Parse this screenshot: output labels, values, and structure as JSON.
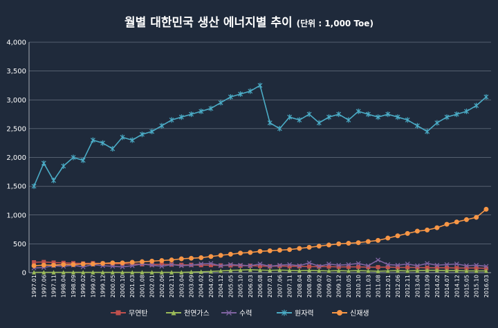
{
  "chart_data": {
    "type": "line",
    "title": "월별 대한민국 생산 에너지별 추이",
    "subtitle": "(단위 : 1,000 Toe)",
    "xlabel": "",
    "ylabel": "",
    "ylim": [
      0,
      4000
    ],
    "yticks": [
      "0",
      "500",
      "1,000",
      "1,500",
      "2,000",
      "2,500",
      "3,000",
      "3,500",
      "4,000"
    ],
    "x": [
      "1997.01",
      "1997.06",
      "1997.11",
      "1998.04",
      "1998.09",
      "1999.02",
      "1999.07",
      "1999.12",
      "2000.05",
      "2000.10",
      "2001.03",
      "2001.08",
      "2002.01",
      "2002.06",
      "2002.11",
      "2003.04",
      "2003.09",
      "2004.02",
      "2004.07",
      "2004.12",
      "2005.05",
      "2005.10",
      "2006.03",
      "2006.08",
      "2007.01",
      "2007.06",
      "2007.11",
      "2008.04",
      "2008.09",
      "2009.02",
      "2009.07",
      "2009.12",
      "2010.05",
      "2010.10",
      "2011.03",
      "2011.08",
      "2012.01",
      "2012.06",
      "2012.11",
      "2013.04",
      "2013.09",
      "2014.02",
      "2014.07",
      "2014.12",
      "2015.05",
      "2015.10",
      "2016.03"
    ],
    "grid": true,
    "legend_position": "bottom",
    "series": [
      {
        "name": "무연탄",
        "color": "#c0504d",
        "marker": "square",
        "values": [
          180,
          185,
          175,
          170,
          165,
          160,
          165,
          160,
          150,
          155,
          150,
          145,
          140,
          145,
          140,
          135,
          135,
          130,
          130,
          125,
          125,
          120,
          120,
          115,
          110,
          115,
          110,
          110,
          105,
          105,
          105,
          100,
          100,
          100,
          95,
          95,
          95,
          90,
          90,
          90,
          85,
          85,
          85,
          80,
          80,
          80,
          75
        ]
      },
      {
        "name": "천연가스",
        "color": "#9bbb59",
        "marker": "triangle",
        "values": [
          5,
          5,
          5,
          5,
          5,
          5,
          5,
          5,
          5,
          5,
          5,
          5,
          5,
          5,
          5,
          5,
          10,
          15,
          20,
          30,
          40,
          45,
          50,
          45,
          40,
          45,
          40,
          35,
          40,
          35,
          30,
          35,
          30,
          35,
          30,
          25,
          30,
          35,
          30,
          35,
          40,
          40,
          35,
          35,
          30,
          30,
          30
        ]
      },
      {
        "name": "수력",
        "color": "#8064a2",
        "marker": "x",
        "values": [
          80,
          90,
          120,
          110,
          130,
          100,
          140,
          120,
          110,
          100,
          120,
          150,
          130,
          110,
          140,
          120,
          130,
          150,
          160,
          120,
          140,
          130,
          120,
          150,
          110,
          130,
          140,
          120,
          170,
          110,
          150,
          130,
          140,
          160,
          120,
          220,
          140,
          130,
          150,
          120,
          160,
          130,
          140,
          150,
          120,
          130,
          110
        ]
      },
      {
        "name": "원자력",
        "color": "#4bacc6",
        "marker": "star",
        "values": [
          1500,
          1900,
          1600,
          1850,
          2000,
          1950,
          2300,
          2250,
          2150,
          2350,
          2300,
          2400,
          2450,
          2550,
          2650,
          2700,
          2750,
          2800,
          2850,
          2950,
          3050,
          3100,
          3150,
          3250,
          2600,
          2500,
          2700,
          2650,
          2750,
          2600,
          2700,
          2750,
          2650,
          2800,
          2750,
          2700,
          2750,
          2700,
          2650,
          2550,
          2450,
          2600,
          2700,
          2750,
          2800,
          2900,
          3050
        ]
      },
      {
        "name": "신재생",
        "color": "#f79646",
        "marker": "circle",
        "values": [
          120,
          130,
          130,
          140,
          140,
          150,
          150,
          160,
          170,
          170,
          180,
          190,
          200,
          210,
          220,
          240,
          250,
          260,
          280,
          300,
          320,
          340,
          350,
          370,
          380,
          390,
          400,
          420,
          440,
          460,
          480,
          500,
          510,
          520,
          540,
          560,
          600,
          640,
          680,
          720,
          740,
          780,
          840,
          880,
          920,
          960,
          1100
        ]
      }
    ]
  }
}
